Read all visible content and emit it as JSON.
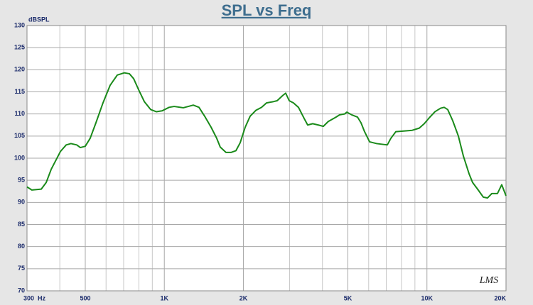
{
  "chart_data": {
    "type": "line",
    "title": "SPL vs Freq",
    "y_label": "dBSPL",
    "watermark": "LMS",
    "log_x": true,
    "grid": true,
    "xlim": [
      300,
      20000
    ],
    "ylim": [
      70,
      130
    ],
    "xticks": [
      {
        "value": 300,
        "label": "300  Hz"
      },
      500,
      {
        "value": 1000,
        "label": "1K"
      },
      {
        "value": 2000,
        "label": "2K"
      },
      {
        "value": 5000,
        "label": "5K"
      },
      {
        "value": 10000,
        "label": "10K"
      },
      {
        "value": 20000,
        "label": "20K"
      }
    ],
    "xgrid_minor": [
      400,
      600,
      700,
      800,
      900,
      3000,
      4000,
      6000,
      7000,
      8000,
      9000
    ],
    "yticks": [
      70,
      75,
      80,
      85,
      90,
      95,
      100,
      105,
      110,
      115,
      120,
      125,
      130
    ],
    "x": [
      300,
      313,
      340,
      355,
      371,
      402,
      423,
      441,
      464,
      479,
      500,
      522,
      549,
      584,
      622,
      662,
      704,
      736,
      764,
      798,
      839,
      887,
      933,
      980,
      1043,
      1090,
      1181,
      1234,
      1289,
      1355,
      1424,
      1507,
      1583,
      1633,
      1717,
      1794,
      1874,
      1945,
      2032,
      2122,
      2230,
      2345,
      2449,
      2607,
      2689,
      2827,
      2898,
      2990,
      3104,
      3242,
      3407,
      3515,
      3672,
      3860,
      4032,
      4211,
      4482,
      4652,
      4860,
      4952,
      5172,
      5439,
      5610,
      5787,
      6048,
      6435,
      6849,
      7065,
      7290,
      7614,
      8004,
      8790,
      9348,
      9768,
      10266,
      10722,
      11271,
      11628,
      11997,
      12531,
      13173,
      13761,
      14463,
      14922,
      15588,
      16386,
      17010,
      17661,
      18558,
      19263,
      20000
    ],
    "series": [
      {
        "name": "SPL",
        "color": "#1a8a1a",
        "values": [
          93.5,
          92.8,
          93,
          94.5,
          97.5,
          101.5,
          103,
          103.3,
          103,
          102.4,
          102.7,
          104.5,
          108,
          112.5,
          116.5,
          118.8,
          119.3,
          119.1,
          118,
          115.5,
          112.8,
          111,
          110.5,
          110.7,
          111.5,
          111.7,
          111.4,
          111.7,
          112,
          111.5,
          109.5,
          107,
          104.5,
          102.5,
          101.3,
          101.3,
          101.7,
          103.5,
          107,
          109.5,
          110.8,
          111.5,
          112.5,
          112.8,
          113,
          114.2,
          114.7,
          113,
          112.5,
          111.5,
          109,
          107.5,
          107.8,
          107.5,
          107.2,
          108.3,
          109.2,
          109.8,
          110,
          110.4,
          109.8,
          109.3,
          108,
          106,
          103.7,
          103.3,
          103.1,
          103,
          104.5,
          106,
          106.1,
          106.3,
          106.8,
          107.8,
          109.3,
          110.5,
          111.3,
          111.5,
          111,
          108.5,
          105,
          100.5,
          96.5,
          94.5,
          93,
          91.2,
          91,
          92,
          92,
          94,
          91.5
        ]
      }
    ]
  }
}
